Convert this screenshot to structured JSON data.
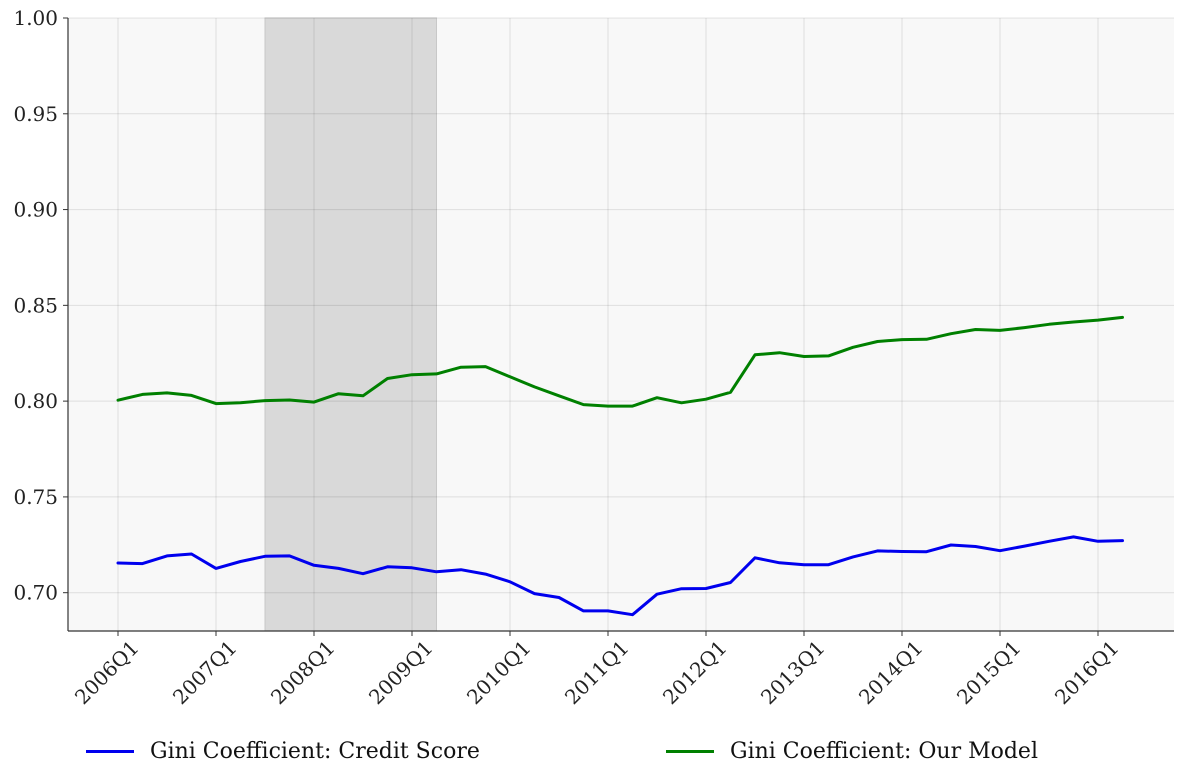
{
  "chart_data": {
    "type": "line",
    "x": [
      "2006Q1",
      "2006Q2",
      "2006Q3",
      "2006Q4",
      "2007Q1",
      "2007Q2",
      "2007Q3",
      "2007Q4",
      "2008Q1",
      "2008Q2",
      "2008Q3",
      "2008Q4",
      "2009Q1",
      "2009Q2",
      "2009Q3",
      "2009Q4",
      "2010Q1",
      "2010Q2",
      "2010Q3",
      "2010Q4",
      "2011Q1",
      "2011Q2",
      "2011Q3",
      "2011Q4",
      "2012Q1",
      "2012Q2",
      "2012Q3",
      "2012Q4",
      "2013Q1",
      "2013Q2",
      "2013Q3",
      "2013Q4",
      "2014Q1",
      "2014Q2",
      "2014Q3",
      "2014Q4",
      "2015Q1",
      "2015Q2",
      "2015Q3",
      "2015Q4",
      "2016Q1",
      "2016Q2"
    ],
    "x_tick_labels": [
      "2006Q1",
      "2007Q1",
      "2008Q1",
      "2009Q1",
      "2010Q1",
      "2011Q1",
      "2012Q1",
      "2013Q1",
      "2014Q1",
      "2015Q1",
      "2016Q1"
    ],
    "y_tick_labels": [
      "0.70",
      "0.75",
      "0.80",
      "0.85",
      "0.90",
      "0.95",
      "1.00"
    ],
    "ylim": [
      0.68,
      1.0
    ],
    "shaded_region": {
      "from": "2007Q3",
      "to": "2009Q2",
      "color": "#d9d9d9"
    },
    "grid": true,
    "legend_position": "bottom",
    "series": [
      {
        "name": "Gini Coefficient: Credit Score",
        "color": "#0000ee",
        "values": [
          0.7155,
          0.7152,
          0.7192,
          0.7202,
          0.7127,
          0.7163,
          0.719,
          0.7192,
          0.7143,
          0.7127,
          0.7099,
          0.7135,
          0.713,
          0.7109,
          0.712,
          0.7097,
          0.7057,
          0.6995,
          0.6975,
          0.6905,
          0.6905,
          0.6885,
          0.6992,
          0.7021,
          0.7022,
          0.7053,
          0.7182,
          0.7156,
          0.7146,
          0.7146,
          0.7187,
          0.7218,
          0.7215,
          0.7214,
          0.7249,
          0.7241,
          0.7219,
          0.7243,
          0.7268,
          0.7291,
          0.7268,
          0.7272
        ]
      },
      {
        "name": "Gini Coefficient: Our Model",
        "color": "#008000",
        "values": [
          0.8005,
          0.8035,
          0.8043,
          0.803,
          0.7987,
          0.7992,
          0.8003,
          0.8006,
          0.7995,
          0.8039,
          0.8028,
          0.8118,
          0.8138,
          0.8142,
          0.8177,
          0.818,
          0.8127,
          0.8074,
          0.8028,
          0.7982,
          0.7974,
          0.7974,
          0.8018,
          0.7991,
          0.801,
          0.8046,
          0.8242,
          0.8253,
          0.8233,
          0.8236,
          0.8281,
          0.8311,
          0.8321,
          0.8323,
          0.8352,
          0.8374,
          0.8369,
          0.8384,
          0.8401,
          0.8413,
          0.8423,
          0.8437
        ]
      }
    ]
  }
}
